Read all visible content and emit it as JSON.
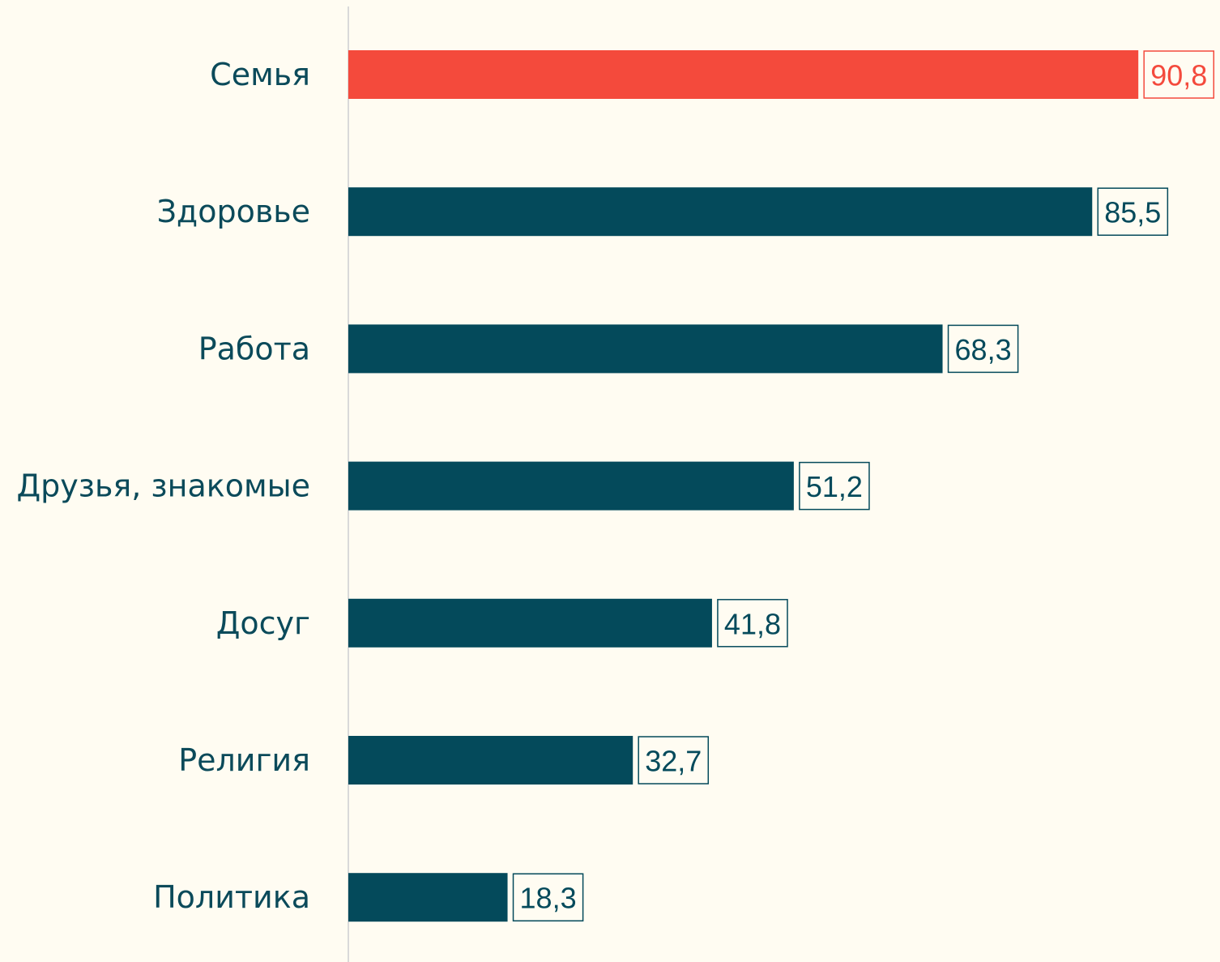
{
  "chart_data": {
    "type": "bar",
    "orientation": "horizontal",
    "categories": [
      "Семья",
      "Здоровье",
      "Работа",
      "Друзья, знакомые",
      "Досуг",
      "Религия",
      "Политика"
    ],
    "values": [
      90.8,
      85.5,
      68.3,
      51.2,
      41.8,
      32.7,
      18.3
    ],
    "value_labels": [
      "90,8",
      "85,5",
      "68,3",
      "51,2",
      "41,8",
      "32,7",
      "18,3"
    ],
    "colors": [
      "#f44a3c",
      "#044a5b",
      "#044a5b",
      "#044a5b",
      "#044a5b",
      "#044a5b",
      "#044a5b"
    ],
    "xlim": [
      0,
      100
    ]
  }
}
